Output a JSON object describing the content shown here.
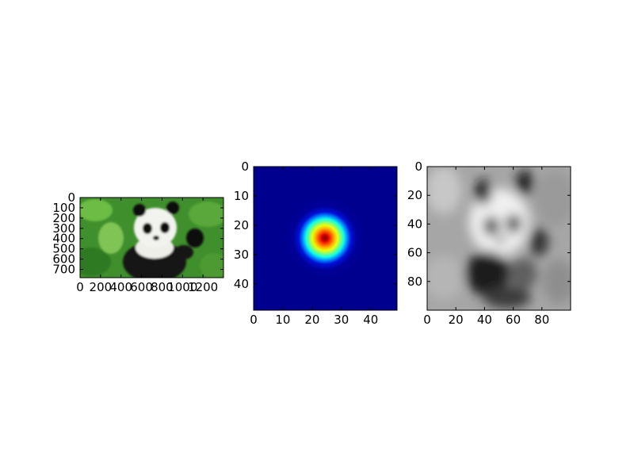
{
  "chart_data": [
    {
      "type": "image",
      "image_content": "photograph of a giant panda sitting in green vegetation, raising its left paw",
      "x_ticks": [
        0,
        200,
        400,
        600,
        800,
        1000,
        1200
      ],
      "y_ticks": [
        0,
        100,
        200,
        300,
        400,
        500,
        600,
        700
      ],
      "xlim": [
        0,
        1400
      ],
      "ylim": [
        781,
        0
      ],
      "colors": {
        "grass": "#3f8f2c",
        "fur_white": "#f2f2ee",
        "fur_black": "#111111"
      }
    },
    {
      "type": "heatmap",
      "image_content": "2D Gaussian kernel shown with jet colormap, peak at center",
      "x_ticks": [
        0,
        10,
        20,
        30,
        40
      ],
      "y_ticks": [
        0,
        10,
        20,
        30,
        40
      ],
      "xlim": [
        0,
        49
      ],
      "ylim": [
        49,
        0
      ],
      "center": [
        24,
        24
      ],
      "colormap": "jet",
      "colors": {
        "low": "#00008f",
        "mid": "#00ffff",
        "high": "#7f0000"
      }
    },
    {
      "type": "heatmap",
      "image_content": "blurred grayscale panda image (result of Gaussian filtering)",
      "x_ticks": [
        0,
        20,
        40,
        60,
        80
      ],
      "y_ticks": [
        0,
        20,
        40,
        60,
        80
      ],
      "xlim": [
        0,
        100
      ],
      "ylim": [
        100,
        0
      ],
      "colormap": "gray",
      "colors": {
        "light": "#e6e6e6",
        "mid": "#a8a8a8",
        "dark": "#151515"
      }
    }
  ]
}
